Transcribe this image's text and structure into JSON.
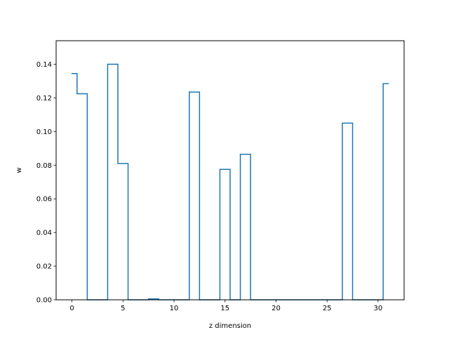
{
  "chart_data": {
    "type": "line",
    "drawstyle": "steps-mid",
    "xlabel": "z dimension",
    "ylabel": "w",
    "xlim": [
      -1.55,
      32.55
    ],
    "ylim": [
      0.0,
      0.154
    ],
    "xticks": [
      0,
      5,
      10,
      15,
      20,
      25,
      30
    ],
    "yticks": [
      0.0,
      0.02,
      0.04,
      0.06,
      0.08,
      0.1,
      0.12,
      0.14
    ],
    "ytick_labels": [
      "0.00",
      "0.02",
      "0.04",
      "0.06",
      "0.08",
      "0.10",
      "0.12",
      "0.14"
    ],
    "grid": false,
    "series": [
      {
        "color": "#1f77b4",
        "x": [
          0,
          1,
          2,
          3,
          4,
          5,
          6,
          7,
          8,
          9,
          10,
          11,
          12,
          13,
          14,
          15,
          16,
          17,
          18,
          19,
          20,
          21,
          22,
          23,
          24,
          25,
          26,
          27,
          28,
          29,
          30,
          31
        ],
        "values": [
          0.1345,
          0.1225,
          0.0,
          0.0,
          0.14,
          0.081,
          0.0,
          0.0,
          0.0005,
          0.0,
          0.0,
          0.0,
          0.1235,
          0.0,
          0.0,
          0.0775,
          0.0,
          0.0865,
          0.0,
          0.0,
          0.0,
          0.0,
          0.0,
          0.0,
          0.0,
          0.0,
          0.0,
          0.105,
          0.0,
          0.0,
          0.0,
          0.1285
        ]
      }
    ]
  }
}
